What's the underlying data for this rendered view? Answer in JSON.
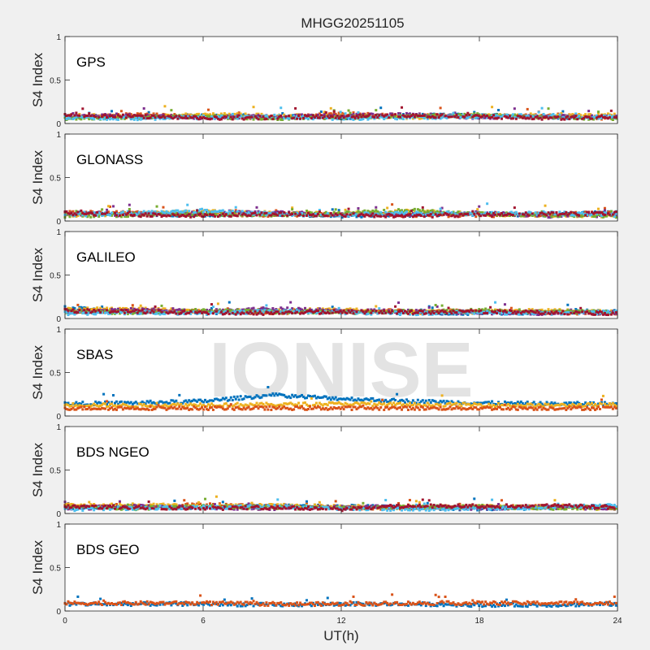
{
  "chart_data": {
    "type": "scatter",
    "title": "MHGG20251105",
    "xlabel": "UT(h)",
    "ylabel": "S4 Index",
    "xlim": [
      0,
      24
    ],
    "ylim": [
      0,
      1
    ],
    "xticks": [
      "0",
      "6",
      "12",
      "18",
      "24"
    ],
    "yticks": [
      "0",
      "0.5",
      "1"
    ],
    "watermark": "IONISE",
    "panels": [
      {
        "name": "GPS",
        "series": [
          {
            "color": "#0072BD",
            "levels": [
              0.08,
              0.07,
              0.09,
              0.08,
              0.07,
              0.09,
              0.1,
              0.07,
              0.08
            ]
          },
          {
            "color": "#D95319",
            "levels": [
              0.07,
              0.1,
              0.08,
              0.07,
              0.11,
              0.09,
              0.08,
              0.09,
              0.06
            ]
          },
          {
            "color": "#EDB120",
            "levels": [
              0.09,
              0.08,
              0.1,
              0.09,
              0.08,
              0.07,
              0.09,
              0.08,
              0.1
            ]
          },
          {
            "color": "#7E2F8E",
            "levels": [
              0.1,
              0.09,
              0.07,
              0.08,
              0.09,
              0.1,
              0.07,
              0.08,
              0.07
            ]
          },
          {
            "color": "#77AC30",
            "levels": [
              0.06,
              0.07,
              0.08,
              0.06,
              0.07,
              0.08,
              0.1,
              0.07,
              0.06
            ]
          },
          {
            "color": "#4DBEEE",
            "levels": [
              0.07,
              0.06,
              0.07,
              0.08,
              0.06,
              0.07,
              0.08,
              0.09,
              0.07
            ]
          },
          {
            "color": "#A2142F",
            "levels": [
              0.09,
              0.08,
              0.06,
              0.07,
              0.08,
              0.09,
              0.08,
              0.06,
              0.08
            ]
          }
        ]
      },
      {
        "name": "GLONASS",
        "series": [
          {
            "color": "#0072BD",
            "levels": [
              0.09,
              0.08,
              0.07,
              0.08,
              0.06,
              0.07,
              0.08,
              0.07,
              0.1
            ]
          },
          {
            "color": "#D95319",
            "levels": [
              0.1,
              0.09,
              0.08,
              0.07,
              0.08,
              0.07,
              0.06,
              0.08,
              0.09
            ]
          },
          {
            "color": "#EDB120",
            "levels": [
              0.07,
              0.08,
              0.11,
              0.09,
              0.08,
              0.11,
              0.08,
              0.07,
              0.06
            ]
          },
          {
            "color": "#7E2F8E",
            "levels": [
              0.08,
              0.07,
              0.09,
              0.1,
              0.07,
              0.08,
              0.09,
              0.06,
              0.07
            ]
          },
          {
            "color": "#77AC30",
            "levels": [
              0.06,
              0.07,
              0.08,
              0.07,
              0.09,
              0.12,
              0.08,
              0.07,
              0.06
            ]
          },
          {
            "color": "#4DBEEE",
            "levels": [
              0.07,
              0.09,
              0.12,
              0.08,
              0.07,
              0.09,
              0.08,
              0.09,
              0.07
            ]
          },
          {
            "color": "#A2142F",
            "levels": [
              0.09,
              0.07,
              0.06,
              0.08,
              0.07,
              0.06,
              0.07,
              0.08,
              0.09
            ]
          }
        ]
      },
      {
        "name": "GALILEO",
        "series": [
          {
            "color": "#0072BD",
            "levels": [
              0.12,
              0.08,
              0.07,
              0.08,
              0.09,
              0.07,
              0.06,
              0.07,
              0.08
            ]
          },
          {
            "color": "#D95319",
            "levels": [
              0.08,
              0.09,
              0.08,
              0.07,
              0.08,
              0.09,
              0.08,
              0.07,
              0.06
            ]
          },
          {
            "color": "#EDB120",
            "levels": [
              0.1,
              0.11,
              0.08,
              0.09,
              0.1,
              0.07,
              0.08,
              0.09,
              0.07
            ]
          },
          {
            "color": "#7E2F8E",
            "levels": [
              0.07,
              0.1,
              0.08,
              0.11,
              0.09,
              0.08,
              0.07,
              0.06,
              0.07
            ]
          },
          {
            "color": "#77AC30",
            "levels": [
              0.08,
              0.07,
              0.09,
              0.08,
              0.07,
              0.08,
              0.09,
              0.08,
              0.07
            ]
          },
          {
            "color": "#4DBEEE",
            "levels": [
              0.06,
              0.07,
              0.06,
              0.08,
              0.07,
              0.06,
              0.07,
              0.06,
              0.07
            ]
          },
          {
            "color": "#A2142F",
            "levels": [
              0.09,
              0.08,
              0.07,
              0.06,
              0.08,
              0.07,
              0.08,
              0.07,
              0.06
            ]
          }
        ]
      },
      {
        "name": "SBAS",
        "series": [
          {
            "color": "#0072BD",
            "levels": [
              0.14,
              0.15,
              0.17,
              0.24,
              0.2,
              0.17,
              0.15,
              0.14,
              0.14
            ]
          },
          {
            "color": "#EDB120",
            "levels": [
              0.13,
              0.12,
              0.13,
              0.13,
              0.14,
              0.13,
              0.13,
              0.12,
              0.13
            ]
          },
          {
            "color": "#D95319",
            "levels": [
              0.09,
              0.09,
              0.09,
              0.09,
              0.09,
              0.09,
              0.09,
              0.09,
              0.09
            ]
          }
        ]
      },
      {
        "name": "BDS NGEO",
        "series": [
          {
            "color": "#0072BD",
            "levels": [
              0.07,
              0.08,
              0.07,
              0.09,
              0.08,
              0.07,
              0.05,
              0.07,
              0.08
            ]
          },
          {
            "color": "#D95319",
            "levels": [
              0.08,
              0.07,
              0.1,
              0.08,
              0.07,
              0.06,
              0.07,
              0.08,
              0.07
            ]
          },
          {
            "color": "#EDB120",
            "levels": [
              0.09,
              0.1,
              0.08,
              0.09,
              0.08,
              0.07,
              0.08,
              0.07,
              0.06
            ]
          },
          {
            "color": "#7E2F8E",
            "levels": [
              0.06,
              0.08,
              0.07,
              0.06,
              0.07,
              0.08,
              0.06,
              0.07,
              0.06
            ]
          },
          {
            "color": "#77AC30",
            "levels": [
              0.07,
              0.06,
              0.08,
              0.07,
              0.06,
              0.07,
              0.08,
              0.06,
              0.07
            ]
          },
          {
            "color": "#4DBEEE",
            "levels": [
              0.05,
              0.06,
              0.07,
              0.08,
              0.06,
              0.05,
              0.06,
              0.07,
              0.09
            ]
          },
          {
            "color": "#A2142F",
            "levels": [
              0.08,
              0.07,
              0.06,
              0.07,
              0.05,
              0.09,
              0.08,
              0.09,
              0.07
            ]
          }
        ]
      },
      {
        "name": "BDS GEO",
        "series": [
          {
            "color": "#0072BD",
            "levels": [
              0.08,
              0.08,
              0.08,
              0.07,
              0.08,
              0.08,
              0.07,
              0.07,
              0.08
            ]
          },
          {
            "color": "#D95319",
            "levels": [
              0.09,
              0.09,
              0.09,
              0.08,
              0.08,
              0.09,
              0.09,
              0.09,
              0.09
            ]
          }
        ]
      }
    ]
  }
}
